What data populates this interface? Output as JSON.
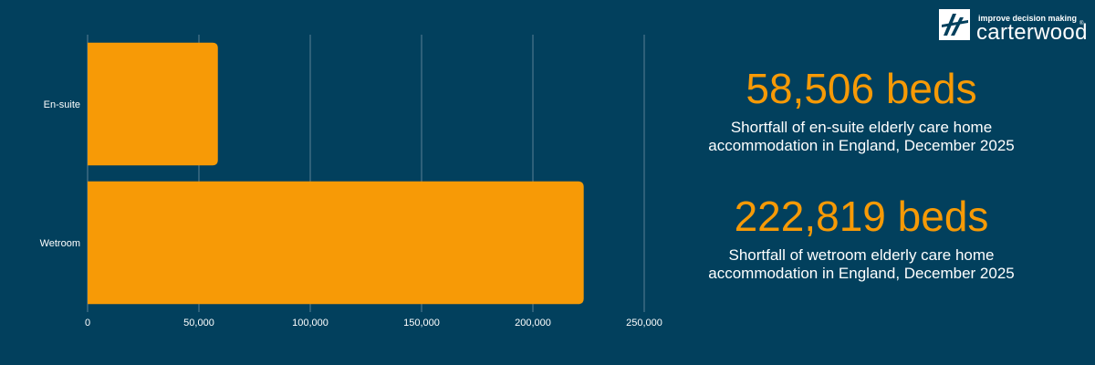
{
  "chart_data": {
    "type": "bar",
    "orientation": "horizontal",
    "categories": [
      "En-suite",
      "Wetroom"
    ],
    "values": [
      58506,
      222819
    ],
    "xlim": [
      0,
      250000
    ],
    "xticks": [
      "0",
      "50,000",
      "100,000",
      "150,000",
      "200,000",
      "250,000"
    ],
    "xtick_values": [
      0,
      50000,
      100000,
      150000,
      200000,
      250000
    ],
    "grid": "vertical",
    "bar_color": "#f79a06"
  },
  "stats": [
    {
      "value": "58,506 beds",
      "desc_line1": "Shortfall of en-suite elderly care home",
      "desc_line2": "accommodation in England, December 2025"
    },
    {
      "value": "222,819 beds",
      "desc_line1": "Shortfall of wetroom elderly care home",
      "desc_line2": "accommodation in England, December 2025"
    }
  ],
  "logo": {
    "tagline": "improve decision making",
    "brand": "carterwood",
    "reg": "®"
  },
  "colors": {
    "background": "#02405d",
    "accent": "#f79a06",
    "grid": "#5a7f95",
    "text": "#ffffff"
  }
}
